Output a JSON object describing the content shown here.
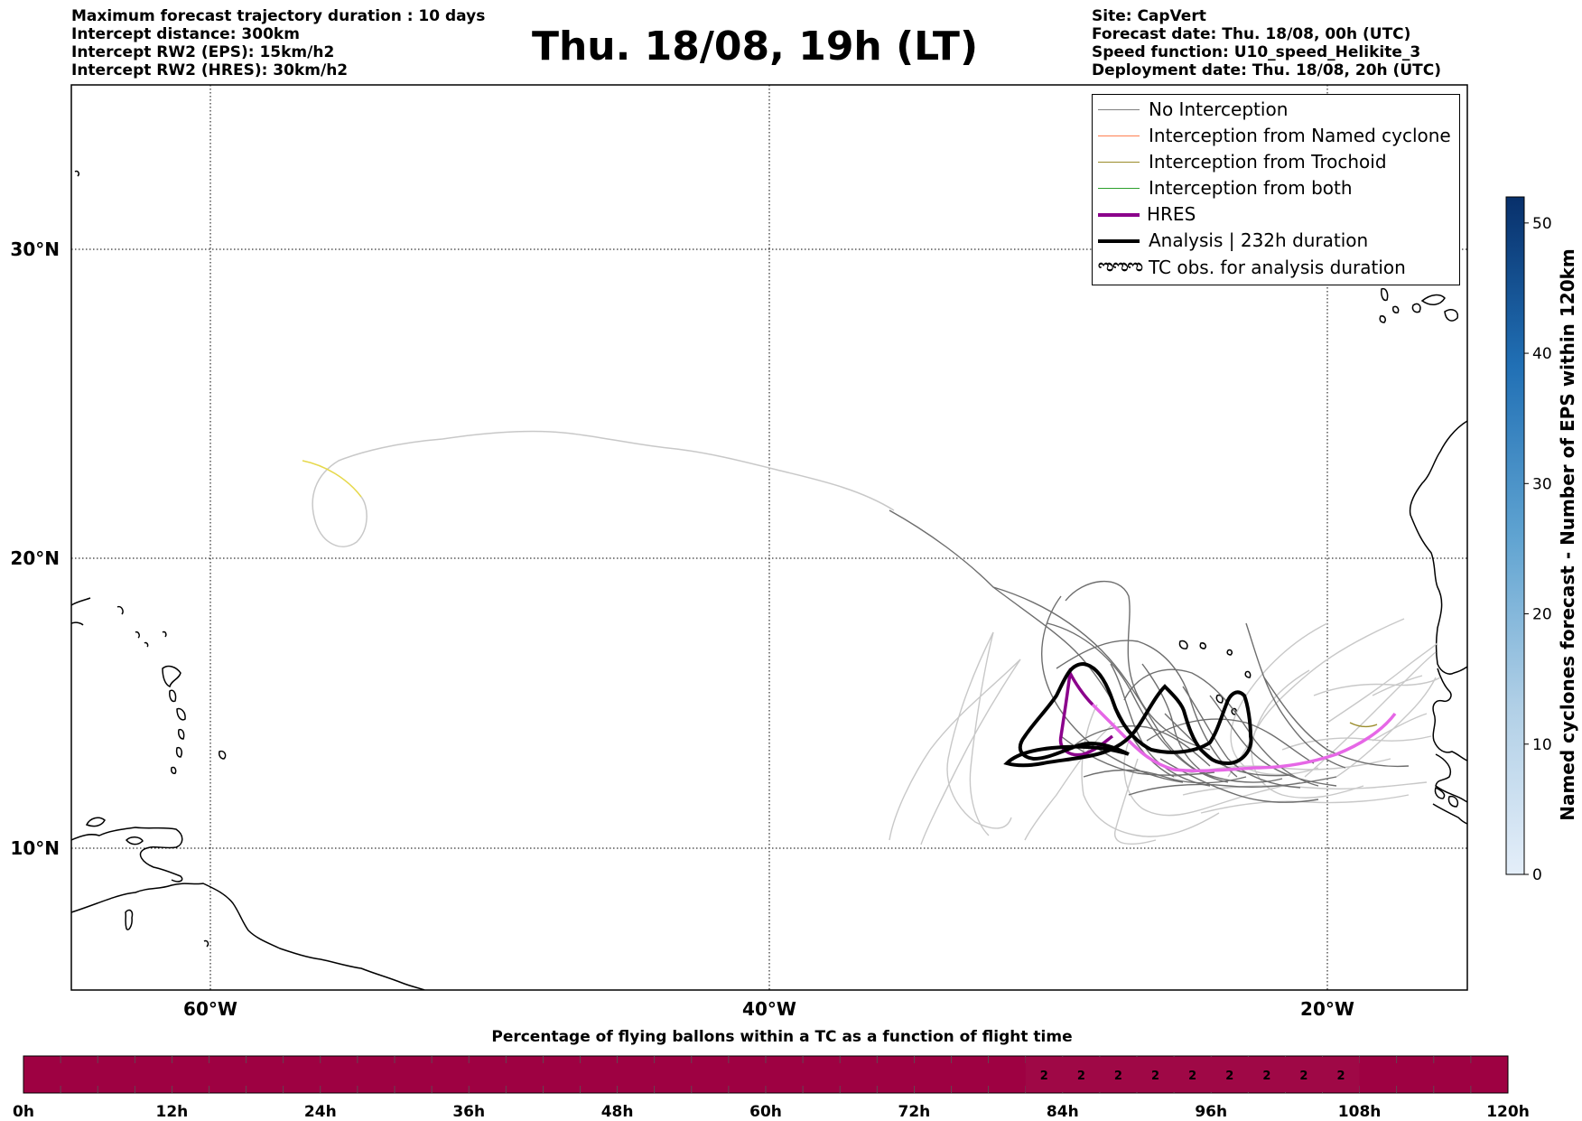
{
  "header_left": [
    "Maximum forecast trajectory duration : 10 days",
    "Intercept distance: 300km",
    "Intercept RW2 (EPS):  15km/h2",
    "Intercept RW2 (HRES): 30km/h2"
  ],
  "title": "Thu. 18/08, 19h (LT)",
  "header_right": [
    "Site: CapVert",
    "Forecast date: Thu. 18/08, 00h (UTC)",
    "Speed function: U10_speed_Helikite_3",
    "Deployment date: Thu. 18/08, 20h (UTC)"
  ],
  "map": {
    "lat_labels": [
      "30°N",
      "20°N",
      "10°N"
    ],
    "lon_labels": [
      "60°W",
      "40°W",
      "20°W"
    ],
    "lon_range": [
      -65,
      -15
    ],
    "lat_range": [
      5.3,
      34.5
    ],
    "grid": true
  },
  "legend": [
    {
      "label": "No Interception",
      "color": "#808080",
      "style": "thin"
    },
    {
      "label": "Interception from Named cyclone",
      "color": "#ff7f50",
      "style": "thin"
    },
    {
      "label": "Interception from Trochoid",
      "color": "#9a8c2a",
      "style": "thin"
    },
    {
      "label": "Interception from both",
      "color": "#2ca02c",
      "style": "thin"
    },
    {
      "label": "HRES",
      "color": "#8b008b",
      "style": "thick"
    },
    {
      "label": "Analysis | 232h duration",
      "color": "#000000",
      "style": "thick"
    },
    {
      "label": "TC obs. for analysis duration",
      "color": "#000000",
      "style": "symbol",
      "symbol": "ಌಌಌ"
    }
  ],
  "colorbar": {
    "label": "Named cyclones forecast - Number of EPS within 120km",
    "ticks": [
      "0",
      "10",
      "20",
      "30",
      "40",
      "50"
    ],
    "min": 0,
    "max": 52,
    "color_low": "#e4eef9",
    "color_high": "#08306b"
  },
  "timebar": {
    "title": "Percentage of flying ballons within a TC as a function of flight time",
    "ticks": [
      "0h",
      "12h",
      "24h",
      "36h",
      "48h",
      "60h",
      "72h",
      "84h",
      "96h",
      "108h",
      "120h"
    ],
    "hours_max": 120,
    "bar_color": "#9e0142",
    "highlight_color": "#9f0846",
    "cells": [
      {
        "hour": 82.5,
        "value": "2"
      },
      {
        "hour": 85.5,
        "value": "2"
      },
      {
        "hour": 88.5,
        "value": "2"
      },
      {
        "hour": 91.5,
        "value": "2"
      },
      {
        "hour": 94.5,
        "value": "2"
      },
      {
        "hour": 97.5,
        "value": "2"
      },
      {
        "hour": 100.5,
        "value": "2"
      },
      {
        "hour": 103.5,
        "value": "2"
      },
      {
        "hour": 106.5,
        "value": "2"
      }
    ]
  }
}
